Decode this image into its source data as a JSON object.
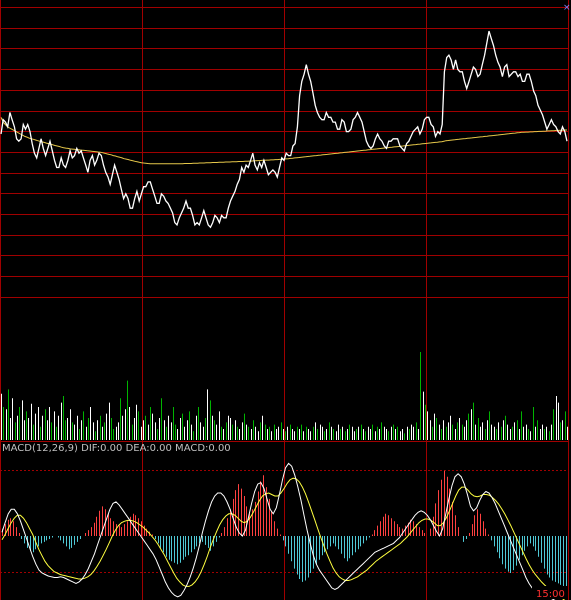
{
  "chart_data": {
    "type": "line",
    "title": "",
    "colors": {
      "background": "#000000",
      "grid": "#a00000",
      "price": "#ffffff",
      "average": "#e6c84a",
      "volume_up": "#ffffff",
      "volume_down": "#00b400",
      "volume_neutral": "#ffffff",
      "macd_pos": "#ff4040",
      "macd_neg": "#4fc9d6",
      "dif": "#ffffff",
      "dea": "#ffff40",
      "label": "#c0c0c0",
      "time_label": "#ff3030"
    },
    "sessions": 4,
    "price_rows": 14,
    "price_range": [
      0,
      13
    ],
    "price": [
      7.9,
      8.5,
      8.4,
      8.2,
      8.8,
      8.5,
      8.2,
      7.7,
      7.6,
      7.7,
      8.3,
      8.1,
      8.3,
      8.0,
      7.5,
      7.1,
      6.9,
      7.3,
      7.7,
      7.3,
      7.0,
      7.3,
      7.6,
      7.2,
      6.8,
      6.5,
      6.5,
      6.9,
      6.6,
      6.5,
      6.8,
      7.2,
      6.9,
      7.0,
      7.3,
      7.1,
      7.2,
      6.9,
      6.6,
      6.3,
      6.8,
      7.0,
      6.6,
      6.8,
      7.1,
      7.0,
      6.6,
      6.3,
      6.1,
      5.8,
      6.2,
      6.6,
      6.3,
      6.0,
      5.6,
      5.2,
      5.4,
      5.2,
      4.8,
      4.8,
      5.2,
      5.5,
      5.1,
      5.4,
      5.7,
      5.7,
      5.9,
      5.9,
      5.6,
      5.3,
      5.0,
      5.0,
      5.4,
      5.3,
      5.1,
      5.0,
      4.8,
      4.6,
      4.2,
      4.1,
      4.4,
      4.6,
      4.8,
      5.1,
      4.8,
      4.8,
      4.5,
      4.1,
      4.2,
      4.1,
      4.4,
      4.7,
      4.4,
      4.1,
      4.0,
      4.2,
      4.5,
      4.4,
      4.2,
      4.5,
      4.4,
      4.4,
      4.8,
      5.1,
      5.3,
      5.5,
      5.8,
      6.0,
      6.5,
      6.3,
      6.6,
      6.5,
      6.8,
      7.1,
      6.6,
      6.4,
      6.7,
      6.5,
      6.8,
      6.5,
      6.2,
      6.3,
      6.4,
      6.3,
      6.1,
      6.5,
      6.9,
      6.8,
      7.1,
      7.0,
      7.0,
      7.4,
      7.5,
      8.2,
      9.5,
      10.1,
      10.4,
      10.8,
      10.4,
      10.1,
      9.6,
      9.1,
      8.8,
      8.6,
      8.5,
      8.5,
      8.8,
      8.6,
      8.6,
      8.4,
      8.4,
      8.1,
      8.1,
      8.5,
      8.4,
      8.0,
      8.0,
      8.1,
      8.5,
      8.6,
      8.8,
      8.6,
      8.4,
      8.0,
      7.6,
      7.4,
      7.3,
      7.4,
      7.7,
      7.9,
      7.7,
      7.6,
      7.4,
      7.3,
      7.6,
      7.6,
      7.7,
      7.7,
      7.7,
      7.4,
      7.3,
      7.2,
      7.5,
      7.6,
      7.8,
      8.0,
      8.1,
      8.2,
      7.9,
      8.1,
      8.5,
      8.6,
      8.6,
      8.3,
      8.2,
      7.8,
      8.0,
      7.9,
      8.3,
      10.5,
      11.1,
      11.2,
      11.0,
      10.6,
      11.0,
      10.6,
      10.5,
      10.5,
      10.1,
      9.8,
      10.1,
      10.4,
      10.7,
      10.6,
      10.3,
      10.4,
      10.8,
      11.2,
      11.7,
      12.2,
      11.9,
      11.6,
      11.2,
      10.9,
      10.7,
      10.3,
      10.7,
      10.8,
      10.3,
      10.4,
      10.5,
      10.5,
      10.3,
      10.4,
      10.1,
      10.1,
      10.4,
      10.4,
      10.1,
      9.7,
      9.5,
      9.1,
      8.9,
      8.7,
      8.4,
      8.1,
      8.3,
      8.5,
      8.3,
      8.2,
      8.0,
      7.9,
      8.2,
      8.0,
      7.6
    ],
    "average": [
      8.6,
      8.4,
      8.3,
      8.2,
      8.15,
      8.1,
      8.05,
      8.0,
      7.95,
      7.9,
      7.85,
      7.8,
      7.77,
      7.73,
      7.7,
      7.68,
      7.65,
      7.62,
      7.6,
      7.57,
      7.55,
      7.52,
      7.5,
      7.48,
      7.45,
      7.42,
      7.4,
      7.38,
      7.35,
      7.33,
      7.31,
      7.3,
      7.28,
      7.27,
      7.26,
      7.25,
      7.24,
      7.23,
      7.22,
      7.21,
      7.2,
      7.19,
      7.18,
      7.17,
      7.16,
      7.15,
      7.14,
      7.12,
      7.1,
      7.07,
      7.05,
      7.03,
      7.0,
      6.98,
      6.95,
      6.93,
      6.9,
      6.87,
      6.85,
      6.83,
      6.8,
      6.78,
      6.76,
      6.74,
      6.72,
      6.7,
      6.69,
      6.68,
      6.67,
      6.66,
      6.66,
      6.66,
      6.66,
      6.66,
      6.66,
      6.66,
      6.66,
      6.66,
      6.66,
      6.66,
      6.66,
      6.66,
      6.66,
      6.66,
      6.66,
      6.67,
      6.67,
      6.67,
      6.67,
      6.68,
      6.68,
      6.68,
      6.69,
      6.69,
      6.69,
      6.7,
      6.7,
      6.7,
      6.71,
      6.71,
      6.71,
      6.72,
      6.72,
      6.72,
      6.73,
      6.73,
      6.73,
      6.74,
      6.74,
      6.74,
      6.75,
      6.75,
      6.75,
      6.76,
      6.76,
      6.77,
      6.77,
      6.78,
      6.78,
      6.79,
      6.79,
      6.8,
      6.8,
      6.81,
      6.81,
      6.82,
      6.82,
      6.83,
      6.83,
      6.84,
      6.84,
      6.85,
      6.86,
      6.87,
      6.88,
      6.89,
      6.9,
      6.91,
      6.92,
      6.93,
      6.94,
      6.95,
      6.96,
      6.97,
      6.98,
      6.99,
      7.0,
      7.01,
      7.02,
      7.03,
      7.04,
      7.05,
      7.06,
      7.07,
      7.08,
      7.09,
      7.1,
      7.11,
      7.12,
      7.13,
      7.14,
      7.15,
      7.16,
      7.17,
      7.18,
      7.19,
      7.2,
      7.21,
      7.22,
      7.23,
      7.24,
      7.25,
      7.26,
      7.27,
      7.28,
      7.29,
      7.3,
      7.31,
      7.32,
      7.33,
      7.34,
      7.35,
      7.36,
      7.37,
      7.38,
      7.39,
      7.4,
      7.41,
      7.42,
      7.43,
      7.44,
      7.45,
      7.46,
      7.47,
      7.48,
      7.49,
      7.5,
      7.51,
      7.52,
      7.53,
      7.54,
      7.55,
      7.56,
      7.57,
      7.58,
      7.6,
      7.62,
      7.63,
      7.64,
      7.65,
      7.66,
      7.67,
      7.68,
      7.69,
      7.7,
      7.71,
      7.72,
      7.73,
      7.74,
      7.75,
      7.76,
      7.77,
      7.78,
      7.79,
      7.8,
      7.81,
      7.82,
      7.83,
      7.84,
      7.85,
      7.86,
      7.87,
      7.88,
      7.89,
      7.9,
      7.91,
      7.92,
      7.93,
      7.94,
      7.95,
      7.96,
      7.97,
      7.97,
      7.98,
      7.98,
      7.99,
      7.99,
      8.0,
      8.0,
      8.01,
      8.01,
      8.02,
      8.02,
      8.03,
      8.03,
      8.04,
      8.04,
      8.05,
      8.05,
      8.06,
      8.06,
      8.07,
      8.07
    ],
    "volume_range": [
      0,
      1
    ],
    "volume": [
      0.42,
      0.3,
      0.28,
      0.46,
      0.2,
      0.38,
      0.16,
      0.22,
      0.3,
      0.36,
      0.18,
      0.26,
      0.2,
      0.33,
      0.14,
      0.24,
      0.3,
      0.12,
      0.22,
      0.28,
      0.18,
      0.3,
      0.16,
      0.26,
      0.12,
      0.22,
      0.34,
      0.4,
      0.18,
      0.2,
      0.28,
      0.16,
      0.14,
      0.22,
      0.1,
      0.18,
      0.26,
      0.12,
      0.2,
      0.3,
      0.16,
      0.08,
      0.18,
      0.22,
      0.12,
      0.16,
      0.24,
      0.34,
      0.2,
      0.1,
      0.12,
      0.16,
      0.38,
      0.22,
      0.28,
      0.54,
      0.3,
      0.14,
      0.2,
      0.32,
      0.26,
      0.12,
      0.18,
      0.22,
      0.14,
      0.3,
      0.24,
      0.16,
      0.1,
      0.2,
      0.38,
      0.18,
      0.12,
      0.22,
      0.16,
      0.3,
      0.14,
      0.1,
      0.2,
      0.24,
      0.12,
      0.18,
      0.26,
      0.14,
      0.08,
      0.22,
      0.3,
      0.16,
      0.12,
      0.2,
      0.46,
      0.36,
      0.22,
      0.18,
      0.14,
      0.26,
      0.12,
      0.1,
      0.16,
      0.22,
      0.2,
      0.14,
      0.18,
      0.12,
      0.1,
      0.16,
      0.24,
      0.14,
      0.12,
      0.1,
      0.18,
      0.12,
      0.08,
      0.16,
      0.22,
      0.14,
      0.1,
      0.12,
      0.08,
      0.14,
      0.1,
      0.12,
      0.16,
      0.1,
      0.08,
      0.12,
      0.14,
      0.1,
      0.08,
      0.12,
      0.1,
      0.14,
      0.08,
      0.12,
      0.1,
      0.08,
      0.12,
      0.16,
      0.1,
      0.14,
      0.12,
      0.08,
      0.1,
      0.16,
      0.12,
      0.1,
      0.08,
      0.14,
      0.1,
      0.12,
      0.08,
      0.1,
      0.14,
      0.12,
      0.08,
      0.1,
      0.12,
      0.14,
      0.1,
      0.08,
      0.12,
      0.1,
      0.14,
      0.08,
      0.12,
      0.1,
      0.16,
      0.12,
      0.1,
      0.08,
      0.12,
      0.14,
      0.1,
      0.12,
      0.08,
      0.1,
      0.06,
      0.12,
      0.1,
      0.14,
      0.12,
      0.16,
      0.1,
      0.8,
      0.44,
      0.32,
      0.26,
      0.18,
      0.12,
      0.24,
      0.2,
      0.14,
      0.1,
      0.18,
      0.12,
      0.16,
      0.22,
      0.14,
      0.1,
      0.16,
      0.2,
      0.14,
      0.12,
      0.18,
      0.24,
      0.28,
      0.34,
      0.14,
      0.2,
      0.12,
      0.16,
      0.1,
      0.18,
      0.26,
      0.14,
      0.12,
      0.1,
      0.16,
      0.12,
      0.18,
      0.22,
      0.14,
      0.1,
      0.12,
      0.16,
      0.18,
      0.1,
      0.26,
      0.12,
      0.14,
      0.1,
      0.08,
      0.3,
      0.12,
      0.18,
      0.1,
      0.14,
      0.1,
      0.12,
      0.08,
      0.14,
      0.28,
      0.4,
      0.34,
      0.16,
      0.18,
      0.26,
      0.12
    ],
    "volume_colors": "wgwgwwgwgwwgwwgwwgwgwwgwgwwggwwgwwgwgwgwwgwgwgwwggwwgwwgwgwwgwwgwgwwgwgwgwwggwwgwwgwgwgwwgwgwgwwgwgwwgwgwwgwgwgwwgwgwgwgwwgwgwgwwgwgwgwwgwgwwgwgwgwwgwgwgwwgwgwgwwgwgwgwwgwgwgwwgwgwwgwgwgwwgwgwgwgwwgwgwgwwgwgwgwwgwgwwgwgwgwwgwgwgwwgwgwgwwgwgwgwwgwgwgwwgwgwwgwgwgwwgwgwgwgwwgwg",
    "macd_label": "MACD(12,26,9)  DIF:0.00  DEA:0.00  MACD:0.00",
    "macd_range": [
      -1.0,
      1.0
    ],
    "macd_hist": [
      0.1,
      0.16,
      0.22,
      0.24,
      0.2,
      0.12,
      0.04,
      -0.04,
      -0.1,
      -0.16,
      -0.2,
      -0.22,
      -0.18,
      -0.14,
      -0.1,
      -0.08,
      -0.06,
      -0.04,
      -0.02,
      0.0,
      -0.02,
      -0.06,
      -0.1,
      -0.14,
      -0.18,
      -0.16,
      -0.12,
      -0.08,
      -0.04,
      0.0,
      0.04,
      0.08,
      0.12,
      0.18,
      0.26,
      0.34,
      0.4,
      0.36,
      0.3,
      0.24,
      0.2,
      0.16,
      0.14,
      0.12,
      0.16,
      0.2,
      0.26,
      0.3,
      0.28,
      0.24,
      0.2,
      0.14,
      0.1,
      0.06,
      0.02,
      -0.04,
      -0.1,
      -0.16,
      -0.22,
      -0.28,
      -0.32,
      -0.34,
      -0.36,
      -0.38,
      -0.36,
      -0.32,
      -0.28,
      -0.26,
      -0.22,
      -0.18,
      -0.14,
      -0.1,
      -0.08,
      -0.12,
      -0.16,
      -0.2,
      -0.14,
      -0.08,
      -0.02,
      0.04,
      0.12,
      0.24,
      0.36,
      0.5,
      0.62,
      0.7,
      0.64,
      0.54,
      0.4,
      0.3,
      0.36,
      0.46,
      0.6,
      0.74,
      0.82,
      0.66,
      0.5,
      0.34,
      0.2,
      0.1,
      0.02,
      -0.06,
      -0.14,
      -0.24,
      -0.34,
      -0.44,
      -0.52,
      -0.58,
      -0.62,
      -0.6,
      -0.56,
      -0.5,
      -0.44,
      -0.38,
      -0.32,
      -0.26,
      -0.22,
      -0.18,
      -0.14,
      -0.1,
      -0.14,
      -0.18,
      -0.24,
      -0.3,
      -0.34,
      -0.3,
      -0.26,
      -0.22,
      -0.18,
      -0.14,
      -0.1,
      -0.06,
      -0.02,
      0.02,
      0.08,
      0.14,
      0.2,
      0.26,
      0.3,
      0.28,
      0.24,
      0.2,
      0.16,
      0.12,
      0.1,
      0.14,
      0.18,
      0.22,
      0.2,
      0.16,
      0.12,
      0.08,
      0.04,
      0.0,
      0.1,
      0.26,
      0.44,
      0.62,
      0.76,
      0.88,
      0.8,
      0.64,
      0.46,
      0.28,
      0.12,
      0.0,
      -0.08,
      -0.04,
      0.04,
      0.16,
      0.28,
      0.36,
      0.3,
      0.2,
      0.1,
      0.02,
      -0.06,
      -0.14,
      -0.22,
      -0.3,
      -0.38,
      -0.44,
      -0.48,
      -0.5,
      -0.46,
      -0.4,
      -0.32,
      -0.26,
      -0.2,
      -0.14,
      -0.1,
      -0.14,
      -0.2,
      -0.28,
      -0.36,
      -0.44,
      -0.52,
      -0.56,
      -0.6,
      -0.62,
      -0.64,
      -0.66,
      -0.68,
      -0.7
    ],
    "dif": [
      0.05,
      0.18,
      0.3,
      0.36,
      0.36,
      0.3,
      0.2,
      0.08,
      -0.04,
      -0.16,
      -0.28,
      -0.38,
      -0.46,
      -0.5,
      -0.52,
      -0.54,
      -0.55,
      -0.56,
      -0.56,
      -0.55,
      -0.56,
      -0.58,
      -0.6,
      -0.62,
      -0.64,
      -0.62,
      -0.58,
      -0.52,
      -0.44,
      -0.34,
      -0.24,
      -0.12,
      0.0,
      0.12,
      0.24,
      0.36,
      0.44,
      0.46,
      0.42,
      0.36,
      0.3,
      0.24,
      0.18,
      0.12,
      0.06,
      0.0,
      -0.06,
      -0.12,
      -0.18,
      -0.24,
      -0.32,
      -0.42,
      -0.52,
      -0.62,
      -0.7,
      -0.76,
      -0.8,
      -0.82,
      -0.8,
      -0.74,
      -0.66,
      -0.56,
      -0.44,
      -0.3,
      -0.14,
      0.04,
      0.2,
      0.34,
      0.46,
      0.54,
      0.58,
      0.58,
      0.54,
      0.46,
      0.36,
      0.24,
      0.12,
      0.04,
      0.0,
      0.08,
      0.26,
      0.44,
      0.6,
      0.7,
      0.72,
      0.64,
      0.5,
      0.36,
      0.3,
      0.38,
      0.56,
      0.76,
      0.92,
      0.98,
      0.94,
      0.82,
      0.66,
      0.48,
      0.28,
      0.08,
      -0.1,
      -0.26,
      -0.38,
      -0.46,
      -0.52,
      -0.58,
      -0.64,
      -0.7,
      -0.72,
      -0.7,
      -0.66,
      -0.62,
      -0.58,
      -0.54,
      -0.5,
      -0.46,
      -0.42,
      -0.38,
      -0.34,
      -0.3,
      -0.26,
      -0.22,
      -0.2,
      -0.18,
      -0.16,
      -0.14,
      -0.12,
      -0.1,
      -0.06,
      -0.02,
      0.04,
      0.1,
      0.16,
      0.22,
      0.28,
      0.32,
      0.34,
      0.32,
      0.28,
      0.22,
      0.14,
      0.06,
      0.0,
      0.1,
      0.3,
      0.5,
      0.68,
      0.8,
      0.84,
      0.8,
      0.7,
      0.56,
      0.4,
      0.34,
      0.38,
      0.48,
      0.56,
      0.6,
      0.58,
      0.52,
      0.44,
      0.34,
      0.24,
      0.14,
      0.04,
      -0.06,
      -0.16,
      -0.26,
      -0.36,
      -0.46,
      -0.56,
      -0.64,
      -0.7,
      -0.74,
      -0.76,
      -0.78,
      -0.8,
      -0.82,
      -0.84,
      -0.86,
      -0.88,
      -0.9,
      -0.92,
      -0.96
    ],
    "dea": [
      -0.05,
      0.02,
      0.1,
      0.18,
      0.24,
      0.28,
      0.28,
      0.24,
      0.18,
      0.1,
      0.02,
      -0.08,
      -0.18,
      -0.26,
      -0.34,
      -0.4,
      -0.44,
      -0.48,
      -0.5,
      -0.52,
      -0.53,
      -0.54,
      -0.55,
      -0.56,
      -0.57,
      -0.58,
      -0.58,
      -0.57,
      -0.55,
      -0.52,
      -0.47,
      -0.41,
      -0.34,
      -0.26,
      -0.18,
      -0.09,
      0.0,
      0.08,
      0.14,
      0.18,
      0.2,
      0.21,
      0.21,
      0.2,
      0.18,
      0.15,
      0.12,
      0.08,
      0.04,
      -0.01,
      -0.06,
      -0.12,
      -0.19,
      -0.26,
      -0.34,
      -0.42,
      -0.5,
      -0.57,
      -0.62,
      -0.66,
      -0.68,
      -0.68,
      -0.66,
      -0.62,
      -0.56,
      -0.48,
      -0.38,
      -0.27,
      -0.15,
      -0.04,
      0.06,
      0.15,
      0.22,
      0.27,
      0.3,
      0.3,
      0.28,
      0.24,
      0.2,
      0.18,
      0.2,
      0.25,
      0.32,
      0.4,
      0.48,
      0.54,
      0.57,
      0.58,
      0.56,
      0.54,
      0.54,
      0.58,
      0.64,
      0.71,
      0.76,
      0.78,
      0.77,
      0.73,
      0.66,
      0.57,
      0.46,
      0.34,
      0.22,
      0.1,
      -0.02,
      -0.13,
      -0.24,
      -0.34,
      -0.43,
      -0.5,
      -0.55,
      -0.58,
      -0.6,
      -0.6,
      -0.59,
      -0.57,
      -0.55,
      -0.52,
      -0.49,
      -0.46,
      -0.42,
      -0.38,
      -0.34,
      -0.31,
      -0.28,
      -0.25,
      -0.22,
      -0.19,
      -0.16,
      -0.13,
      -0.1,
      -0.06,
      -0.02,
      0.03,
      0.08,
      0.13,
      0.18,
      0.21,
      0.23,
      0.23,
      0.21,
      0.18,
      0.14,
      0.14,
      0.18,
      0.25,
      0.34,
      0.44,
      0.54,
      0.62,
      0.66,
      0.66,
      0.62,
      0.57,
      0.54,
      0.53,
      0.54,
      0.56,
      0.56,
      0.55,
      0.52,
      0.48,
      0.43,
      0.37,
      0.3,
      0.22,
      0.14,
      0.05,
      -0.04,
      -0.13,
      -0.22,
      -0.31,
      -0.39,
      -0.46,
      -0.52,
      -0.57,
      -0.62,
      -0.66,
      -0.7,
      -0.73,
      -0.76,
      -0.79,
      -0.82,
      -0.85,
      -0.88
    ],
    "time_label": "15:00"
  }
}
